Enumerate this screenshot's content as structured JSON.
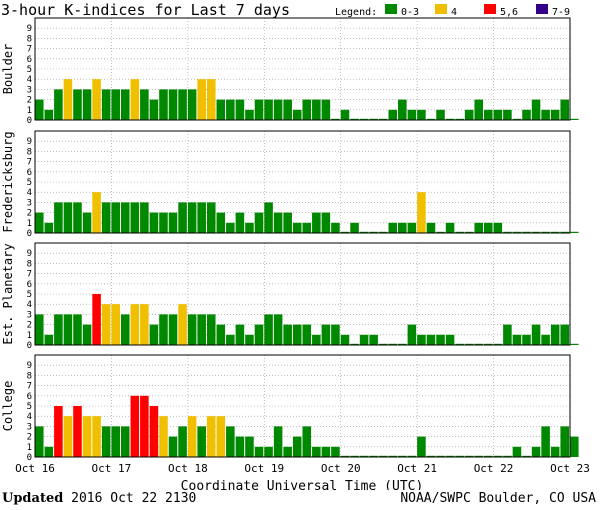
{
  "chart_data": {
    "type": "bar",
    "title": "3-hour K-indices for Last 7 days",
    "legend": {
      "label": "Legend:",
      "placement": "top-right",
      "items": [
        {
          "label": "0-3",
          "color": "#008800",
          "range": [
            0,
            3
          ]
        },
        {
          "label": "4",
          "color": "#f0c000",
          "range": [
            4,
            4
          ]
        },
        {
          "label": "5,6",
          "color": "#ff0000",
          "range": [
            5,
            6
          ]
        },
        {
          "label": "7-9",
          "color": "#330088",
          "range": [
            7,
            9
          ]
        }
      ]
    },
    "xlabel": "Coordinate Universal Time (UTC)",
    "x_ticks": [
      "Oct 16",
      "Oct 17",
      "Oct 18",
      "Oct 19",
      "Oct 20",
      "Oct 21",
      "Oct 22",
      "Oct 23"
    ],
    "ylim": [
      0,
      9
    ],
    "y_ticks": [
      "0",
      "1",
      "2",
      "3",
      "4",
      "5",
      "6",
      "7",
      "8",
      "9"
    ],
    "grid": true,
    "interval_hours": 3,
    "series": [
      {
        "name": "Boulder",
        "values": [
          2,
          1,
          3,
          4,
          3,
          3,
          4,
          3,
          3,
          3,
          4,
          3,
          2,
          3,
          3,
          3,
          3,
          4,
          4,
          2,
          2,
          2,
          1,
          2,
          2,
          2,
          2,
          1,
          2,
          2,
          2,
          0,
          1,
          0,
          0,
          0,
          0,
          1,
          2,
          1,
          1,
          0,
          1,
          0,
          0,
          1,
          2,
          1,
          1,
          1,
          0,
          1,
          2,
          1,
          1,
          2,
          0
        ]
      },
      {
        "name": "Fredericksburg",
        "values": [
          2,
          1,
          3,
          3,
          3,
          2,
          4,
          3,
          3,
          3,
          3,
          3,
          2,
          2,
          2,
          3,
          3,
          3,
          3,
          2,
          1,
          2,
          1,
          2,
          3,
          2,
          2,
          1,
          1,
          2,
          2,
          1,
          0,
          1,
          0,
          0,
          0,
          1,
          1,
          1,
          4,
          1,
          0,
          1,
          0,
          0,
          1,
          1,
          1,
          0,
          0,
          0,
          0,
          0,
          0,
          0,
          0
        ]
      },
      {
        "name": "Est. Planetary",
        "values": [
          3,
          1,
          3,
          3,
          3,
          2,
          5,
          4,
          4,
          3,
          4,
          4,
          2,
          3,
          3,
          4,
          3,
          3,
          3,
          2,
          1,
          2,
          1,
          2,
          3,
          3,
          2,
          2,
          2,
          1,
          2,
          2,
          1,
          0,
          1,
          1,
          0,
          0,
          0,
          2,
          1,
          1,
          1,
          1,
          0,
          0,
          0,
          0,
          0,
          2,
          1,
          1,
          2,
          1,
          2,
          2,
          0
        ]
      },
      {
        "name": "College",
        "values": [
          3,
          1,
          5,
          4,
          5,
          4,
          4,
          3,
          3,
          3,
          6,
          6,
          5,
          4,
          2,
          3,
          4,
          3,
          4,
          4,
          3,
          2,
          2,
          1,
          1,
          3,
          1,
          2,
          3,
          1,
          1,
          1,
          0,
          0,
          0,
          0,
          0,
          0,
          0,
          0,
          2,
          0,
          0,
          0,
          0,
          0,
          0,
          0,
          0,
          0,
          1,
          0,
          1,
          3,
          1,
          3,
          2
        ]
      }
    ]
  },
  "footer": {
    "updated_label": "Updated",
    "updated_value": "2016 Oct 22 2130",
    "source": "NOAA/SWPC Boulder, CO USA"
  }
}
